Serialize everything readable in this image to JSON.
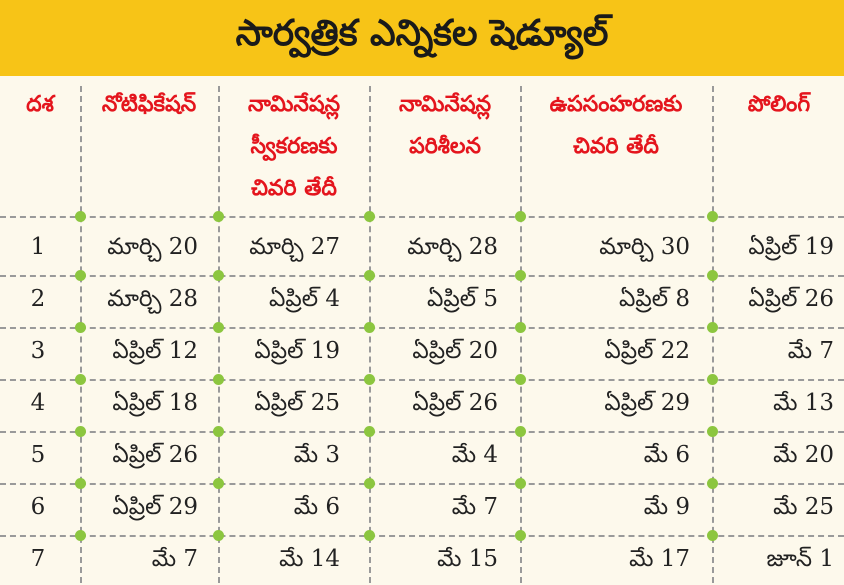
{
  "title": "సార్వత్రిక ఎన్నికల షెడ్యూల్",
  "colors": {
    "banner": "#f7c417",
    "header_text": "#e4151d",
    "dot": "#8cc63f",
    "divider": "#9a9a9a"
  },
  "headers": [
    {
      "text": "దశ"
    },
    {
      "text": "నోటిఫికేషన్"
    },
    {
      "text": "నామినేషన్ల స్వీకరణకు చివరి తేదీ"
    },
    {
      "text": "నామినేషన్ల పరిశీలన"
    },
    {
      "text": "ఉపసంహరణకు చివరి తేదీ"
    },
    {
      "text": "పోలింగ్"
    }
  ],
  "rows": [
    [
      "1",
      "మార్చి 20",
      "మార్చి 27",
      "మార్చి 28",
      "మార్చి 30",
      "ఏప్రిల్ 19"
    ],
    [
      "2",
      "మార్చి 28",
      "ఏప్రిల్ 4",
      "ఏప్రిల్ 5",
      "ఏప్రిల్ 8",
      "ఏప్రిల్ 26"
    ],
    [
      "3",
      "ఏప్రిల్ 12",
      "ఏప్రిల్ 19",
      "ఏప్రిల్ 20",
      "ఏప్రిల్ 22",
      "మే 7"
    ],
    [
      "4",
      "ఏప్రిల్ 18",
      "ఏప్రిల్ 25",
      "ఏప్రిల్ 26",
      "ఏప్రిల్ 29",
      "మే 13"
    ],
    [
      "5",
      "ఏప్రిల్ 26",
      "మే 3",
      "మే 4",
      "మే 6",
      "మే 20"
    ],
    [
      "6",
      "ఏప్రిల్ 29",
      "మే 6",
      "మే 7",
      "మే 9",
      "మే 25"
    ],
    [
      "7",
      "మే 7",
      "మే 14",
      "మే 15",
      "మే 17",
      "జూన్ 1"
    ]
  ]
}
